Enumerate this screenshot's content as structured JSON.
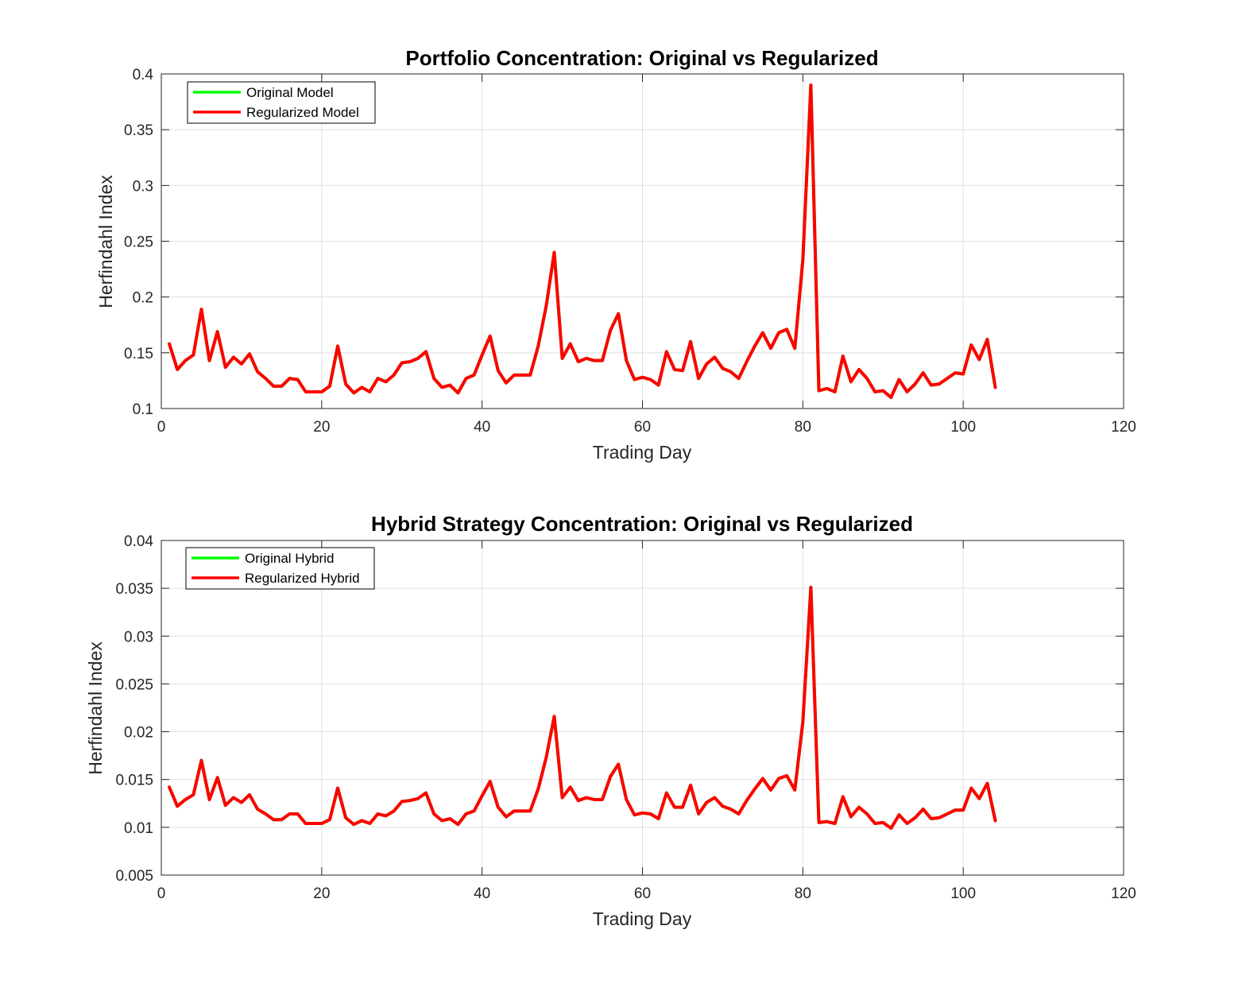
{
  "chart_data": [
    {
      "type": "line",
      "title": "Portfolio Concentration: Original vs Regularized",
      "xlabel": "Trading Day",
      "ylabel": "Herfindahl Index",
      "xlim": [
        0,
        120
      ],
      "ylim": [
        0.1,
        0.4
      ],
      "xticks": [
        0,
        20,
        40,
        60,
        80,
        100,
        120
      ],
      "xtick_labels": [
        "0",
        "20",
        "40",
        "60",
        "80",
        "100",
        "120"
      ],
      "yticks": [
        0.1,
        0.15,
        0.2,
        0.25,
        0.3,
        0.35,
        0.4
      ],
      "ytick_labels": [
        "0.1",
        "0.15",
        "0.2",
        "0.25",
        "0.3",
        "0.35",
        "0.4"
      ],
      "grid": true,
      "legend_position": "top-left",
      "x": [
        1,
        2,
        3,
        4,
        5,
        6,
        7,
        8,
        9,
        10,
        11,
        12,
        13,
        14,
        15,
        16,
        17,
        18,
        19,
        20,
        21,
        22,
        23,
        24,
        25,
        26,
        27,
        28,
        29,
        30,
        31,
        32,
        33,
        34,
        35,
        36,
        37,
        38,
        39,
        40,
        41,
        42,
        43,
        44,
        45,
        46,
        47,
        48,
        49,
        50,
        51,
        52,
        53,
        54,
        55,
        56,
        57,
        58,
        59,
        60,
        61,
        62,
        63,
        64,
        65,
        66,
        67,
        68,
        69,
        70,
        71,
        72,
        73,
        74,
        75,
        76,
        77,
        78,
        79,
        80,
        81,
        82,
        83,
        84,
        85,
        86,
        87,
        88,
        89,
        90,
        91,
        92,
        93,
        94,
        95,
        96,
        97,
        98,
        99,
        100,
        101,
        102,
        103,
        104
      ],
      "series": [
        {
          "name": "Original Model",
          "color": "#00ff00",
          "values": [
            0.158,
            0.135,
            0.143,
            0.148,
            0.189,
            0.143,
            0.169,
            0.137,
            0.146,
            0.14,
            0.149,
            0.133,
            0.127,
            0.12,
            0.12,
            0.127,
            0.126,
            0.115,
            0.115,
            0.115,
            0.12,
            0.156,
            0.122,
            0.114,
            0.119,
            0.115,
            0.127,
            0.124,
            0.13,
            0.141,
            0.142,
            0.145,
            0.151,
            0.127,
            0.119,
            0.121,
            0.114,
            0.127,
            0.13,
            0.148,
            0.165,
            0.134,
            0.123,
            0.13,
            0.13,
            0.13,
            0.156,
            0.192,
            0.24,
            0.145,
            0.158,
            0.142,
            0.145,
            0.143,
            0.143,
            0.17,
            0.185,
            0.143,
            0.126,
            0.128,
            0.126,
            0.121,
            0.151,
            0.135,
            0.134,
            0.16,
            0.127,
            0.14,
            0.146,
            0.136,
            0.133,
            0.127,
            0.142,
            0.156,
            0.168,
            0.154,
            0.168,
            0.171,
            0.154,
            0.233,
            0.39,
            0.116,
            0.118,
            0.115,
            0.147,
            0.124,
            0.135,
            0.127,
            0.115,
            0.116,
            0.11,
            0.126,
            0.115,
            0.122,
            0.132,
            0.121,
            0.122,
            0.127,
            0.132,
            0.131,
            0.157,
            0.144,
            0.162,
            0.119
          ]
        },
        {
          "name": "Regularized Model",
          "color": "#ff0000",
          "values": [
            0.158,
            0.135,
            0.143,
            0.148,
            0.189,
            0.143,
            0.169,
            0.137,
            0.146,
            0.14,
            0.149,
            0.133,
            0.127,
            0.12,
            0.12,
            0.127,
            0.126,
            0.115,
            0.115,
            0.115,
            0.12,
            0.156,
            0.122,
            0.114,
            0.119,
            0.115,
            0.127,
            0.124,
            0.13,
            0.141,
            0.142,
            0.145,
            0.151,
            0.127,
            0.119,
            0.121,
            0.114,
            0.127,
            0.13,
            0.148,
            0.165,
            0.134,
            0.123,
            0.13,
            0.13,
            0.13,
            0.156,
            0.192,
            0.24,
            0.145,
            0.158,
            0.142,
            0.145,
            0.143,
            0.143,
            0.17,
            0.185,
            0.143,
            0.126,
            0.128,
            0.126,
            0.121,
            0.151,
            0.135,
            0.134,
            0.16,
            0.127,
            0.14,
            0.146,
            0.136,
            0.133,
            0.127,
            0.142,
            0.156,
            0.168,
            0.154,
            0.168,
            0.171,
            0.154,
            0.233,
            0.39,
            0.116,
            0.118,
            0.115,
            0.147,
            0.124,
            0.135,
            0.127,
            0.115,
            0.116,
            0.11,
            0.126,
            0.115,
            0.122,
            0.132,
            0.121,
            0.122,
            0.127,
            0.132,
            0.131,
            0.157,
            0.144,
            0.162,
            0.119
          ]
        }
      ]
    },
    {
      "type": "line",
      "title": "Hybrid Strategy Concentration: Original vs Regularized",
      "xlabel": "Trading Day",
      "ylabel": "Herfindahl Index",
      "xlim": [
        0,
        120
      ],
      "ylim": [
        0.005,
        0.04
      ],
      "xticks": [
        0,
        20,
        40,
        60,
        80,
        100,
        120
      ],
      "xtick_labels": [
        "0",
        "20",
        "40",
        "60",
        "80",
        "100",
        "120"
      ],
      "yticks": [
        0.005,
        0.01,
        0.015,
        0.02,
        0.025,
        0.03,
        0.035,
        0.04
      ],
      "ytick_labels": [
        "0.005",
        "0.01",
        "0.015",
        "0.02",
        "0.025",
        "0.03",
        "0.035",
        "0.04"
      ],
      "grid": true,
      "legend_position": "top-left",
      "x": [
        1,
        2,
        3,
        4,
        5,
        6,
        7,
        8,
        9,
        10,
        11,
        12,
        13,
        14,
        15,
        16,
        17,
        18,
        19,
        20,
        21,
        22,
        23,
        24,
        25,
        26,
        27,
        28,
        29,
        30,
        31,
        32,
        33,
        34,
        35,
        36,
        37,
        38,
        39,
        40,
        41,
        42,
        43,
        44,
        45,
        46,
        47,
        48,
        49,
        50,
        51,
        52,
        53,
        54,
        55,
        56,
        57,
        58,
        59,
        60,
        61,
        62,
        63,
        64,
        65,
        66,
        67,
        68,
        69,
        70,
        71,
        72,
        73,
        74,
        75,
        76,
        77,
        78,
        79,
        80,
        81,
        82,
        83,
        84,
        85,
        86,
        87,
        88,
        89,
        90,
        91,
        92,
        93,
        94,
        95,
        96,
        97,
        98,
        99,
        100,
        101,
        102,
        103,
        104
      ],
      "series": [
        {
          "name": "Original Hybrid",
          "color": "#00ff00",
          "values": [
            0.0142,
            0.0122,
            0.0129,
            0.0134,
            0.017,
            0.0129,
            0.0152,
            0.0123,
            0.0131,
            0.0126,
            0.0134,
            0.0119,
            0.0114,
            0.0108,
            0.0108,
            0.0114,
            0.0114,
            0.0104,
            0.0104,
            0.0104,
            0.0108,
            0.0141,
            0.011,
            0.0103,
            0.0107,
            0.0104,
            0.0114,
            0.0112,
            0.0117,
            0.0127,
            0.0128,
            0.013,
            0.0136,
            0.0114,
            0.0107,
            0.0109,
            0.0103,
            0.0114,
            0.0117,
            0.0133,
            0.0148,
            0.0121,
            0.0111,
            0.0117,
            0.0117,
            0.0117,
            0.014,
            0.0173,
            0.0216,
            0.0131,
            0.0142,
            0.0128,
            0.0131,
            0.0129,
            0.0129,
            0.0153,
            0.0166,
            0.0129,
            0.0113,
            0.0115,
            0.0114,
            0.0109,
            0.0136,
            0.0121,
            0.0121,
            0.0144,
            0.0114,
            0.0126,
            0.0131,
            0.0122,
            0.0119,
            0.0114,
            0.0128,
            0.014,
            0.0151,
            0.0139,
            0.0151,
            0.0154,
            0.0139,
            0.021,
            0.0351,
            0.0105,
            0.0106,
            0.0104,
            0.0132,
            0.0111,
            0.0121,
            0.0114,
            0.0104,
            0.0105,
            0.0099,
            0.0113,
            0.0104,
            0.011,
            0.0119,
            0.0109,
            0.011,
            0.0114,
            0.0118,
            0.0118,
            0.0141,
            0.013,
            0.0146,
            0.0107
          ]
        },
        {
          "name": "Regularized Hybrid",
          "color": "#ff0000",
          "values": [
            0.0142,
            0.0122,
            0.0129,
            0.0134,
            0.017,
            0.0129,
            0.0152,
            0.0123,
            0.0131,
            0.0126,
            0.0134,
            0.0119,
            0.0114,
            0.0108,
            0.0108,
            0.0114,
            0.0114,
            0.0104,
            0.0104,
            0.0104,
            0.0108,
            0.0141,
            0.011,
            0.0103,
            0.0107,
            0.0104,
            0.0114,
            0.0112,
            0.0117,
            0.0127,
            0.0128,
            0.013,
            0.0136,
            0.0114,
            0.0107,
            0.0109,
            0.0103,
            0.0114,
            0.0117,
            0.0133,
            0.0148,
            0.0121,
            0.0111,
            0.0117,
            0.0117,
            0.0117,
            0.014,
            0.0173,
            0.0216,
            0.0131,
            0.0142,
            0.0128,
            0.0131,
            0.0129,
            0.0129,
            0.0153,
            0.0166,
            0.0129,
            0.0113,
            0.0115,
            0.0114,
            0.0109,
            0.0136,
            0.0121,
            0.0121,
            0.0144,
            0.0114,
            0.0126,
            0.0131,
            0.0122,
            0.0119,
            0.0114,
            0.0128,
            0.014,
            0.0151,
            0.0139,
            0.0151,
            0.0154,
            0.0139,
            0.021,
            0.0351,
            0.0105,
            0.0106,
            0.0104,
            0.0132,
            0.0111,
            0.0121,
            0.0114,
            0.0104,
            0.0105,
            0.0099,
            0.0113,
            0.0104,
            0.011,
            0.0119,
            0.0109,
            0.011,
            0.0114,
            0.0118,
            0.0118,
            0.0141,
            0.013,
            0.0146,
            0.0107
          ]
        }
      ]
    }
  ]
}
